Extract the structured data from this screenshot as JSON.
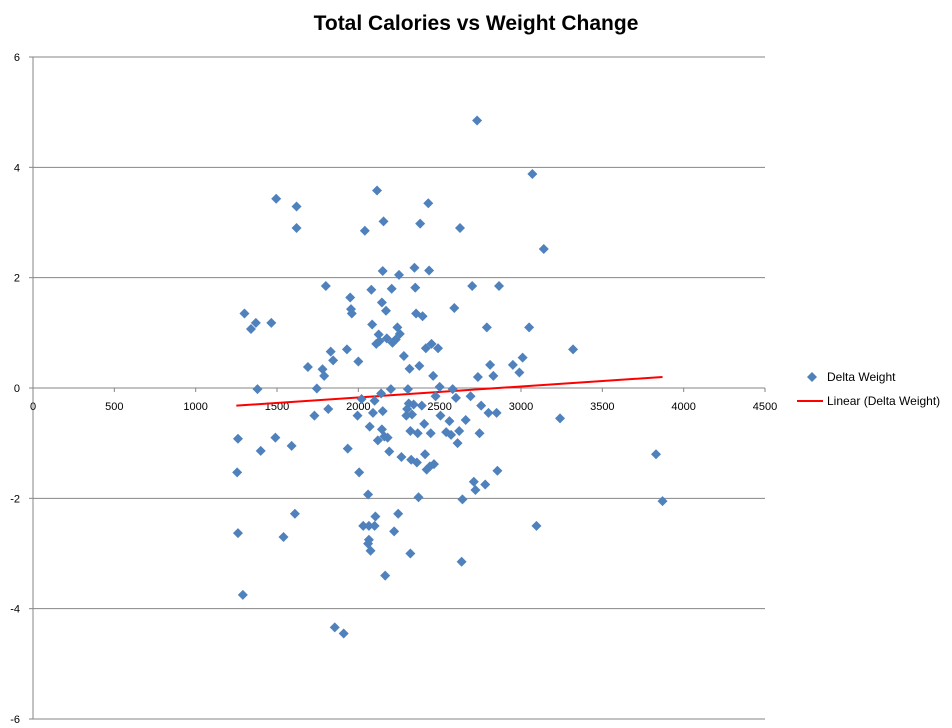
{
  "chart_data": {
    "type": "scatter",
    "title": "Total Calories vs Weight Change",
    "xlabel": "",
    "ylabel": "",
    "xlim": [
      0,
      4500
    ],
    "ylim": [
      -6,
      6
    ],
    "x_ticks": [
      0,
      500,
      1000,
      1500,
      2000,
      2500,
      3000,
      3500,
      4000,
      4500
    ],
    "y_ticks": [
      -6,
      -4,
      -2,
      0,
      2,
      4,
      6
    ],
    "grid": "horizontal",
    "legend_position": "right",
    "series": [
      {
        "name": "Delta Weight",
        "marker": "diamond",
        "color": "#4F81BD",
        "points": [
          [
            1260,
            -0.92
          ],
          [
            1255,
            -1.53
          ],
          [
            1260,
            -2.63
          ],
          [
            1290,
            -3.75
          ],
          [
            1300,
            1.35
          ],
          [
            1340,
            1.07
          ],
          [
            1370,
            1.18
          ],
          [
            1380,
            -0.02
          ],
          [
            1400,
            -1.14
          ],
          [
            1465,
            1.18
          ],
          [
            1490,
            -0.9
          ],
          [
            1495,
            3.43
          ],
          [
            1540,
            -2.7
          ],
          [
            1590,
            -1.05
          ],
          [
            1610,
            -2.28
          ],
          [
            1620,
            2.9
          ],
          [
            1620,
            3.29
          ],
          [
            1690,
            0.38
          ],
          [
            1730,
            -0.5
          ],
          [
            1745,
            -0.01
          ],
          [
            1780,
            0.34
          ],
          [
            1790,
            0.22
          ],
          [
            1800,
            1.85
          ],
          [
            1815,
            -0.38
          ],
          [
            1830,
            0.66
          ],
          [
            1845,
            0.5
          ],
          [
            1855,
            -4.34
          ],
          [
            1910,
            -4.45
          ],
          [
            1930,
            0.7
          ],
          [
            1935,
            -1.1
          ],
          [
            1950,
            1.64
          ],
          [
            1955,
            1.43
          ],
          [
            1960,
            1.35
          ],
          [
            1995,
            -0.5
          ],
          [
            2000,
            0.48
          ],
          [
            2005,
            -1.53
          ],
          [
            2020,
            -0.2
          ],
          [
            2030,
            -2.5
          ],
          [
            2040,
            2.85
          ],
          [
            2060,
            -1.93
          ],
          [
            2065,
            -2.5
          ],
          [
            2060,
            -2.82
          ],
          [
            2065,
            -2.75
          ],
          [
            2075,
            -2.95
          ],
          [
            2070,
            -0.7
          ],
          [
            2080,
            1.78
          ],
          [
            2085,
            1.15
          ],
          [
            2090,
            -0.45
          ],
          [
            2100,
            -0.23
          ],
          [
            2105,
            -2.33
          ],
          [
            2100,
            -2.5
          ],
          [
            2110,
            0.8
          ],
          [
            2115,
            3.58
          ],
          [
            2120,
            -0.95
          ],
          [
            2125,
            0.97
          ],
          [
            2130,
            0.85
          ],
          [
            2140,
            -0.1
          ],
          [
            2145,
            1.55
          ],
          [
            2150,
            2.12
          ],
          [
            2155,
            3.02
          ],
          [
            2145,
            -0.75
          ],
          [
            2150,
            -0.42
          ],
          [
            2160,
            -0.88
          ],
          [
            2165,
            -3.4
          ],
          [
            2170,
            1.4
          ],
          [
            2175,
            0.9
          ],
          [
            2180,
            -0.9
          ],
          [
            2190,
            -1.15
          ],
          [
            2200,
            -0.02
          ],
          [
            2205,
            1.8
          ],
          [
            2210,
            0.82
          ],
          [
            2220,
            -2.6
          ],
          [
            2230,
            0.88
          ],
          [
            2240,
            1.1
          ],
          [
            2245,
            -2.28
          ],
          [
            2250,
            2.05
          ],
          [
            2255,
            0.98
          ],
          [
            2265,
            -1.25
          ],
          [
            2280,
            0.58
          ],
          [
            2295,
            -0.5
          ],
          [
            2300,
            -0.38
          ],
          [
            2305,
            -0.02
          ],
          [
            2310,
            -0.28
          ],
          [
            2315,
            0.35
          ],
          [
            2320,
            -0.78
          ],
          [
            2325,
            -1.3
          ],
          [
            2320,
            -3.0
          ],
          [
            2330,
            -0.48
          ],
          [
            2340,
            -0.3
          ],
          [
            2345,
            2.18
          ],
          [
            2350,
            1.82
          ],
          [
            2355,
            1.35
          ],
          [
            2360,
            -1.35
          ],
          [
            2365,
            -0.82
          ],
          [
            2370,
            -1.98
          ],
          [
            2375,
            0.4
          ],
          [
            2380,
            2.98
          ],
          [
            2390,
            -0.32
          ],
          [
            2395,
            1.3
          ],
          [
            2405,
            -0.65
          ],
          [
            2410,
            -1.2
          ],
          [
            2415,
            0.72
          ],
          [
            2420,
            -1.48
          ],
          [
            2430,
            3.35
          ],
          [
            2435,
            2.13
          ],
          [
            2440,
            -1.42
          ],
          [
            2445,
            -0.82
          ],
          [
            2450,
            0.8
          ],
          [
            2460,
            0.22
          ],
          [
            2465,
            -1.38
          ],
          [
            2475,
            -0.15
          ],
          [
            2490,
            0.72
          ],
          [
            2500,
            0.02
          ],
          [
            2505,
            -0.5
          ],
          [
            2540,
            -0.8
          ],
          [
            2560,
            -0.6
          ],
          [
            2570,
            -0.85
          ],
          [
            2580,
            -0.02
          ],
          [
            2590,
            1.45
          ],
          [
            2600,
            -0.18
          ],
          [
            2610,
            -1.0
          ],
          [
            2620,
            -0.78
          ],
          [
            2625,
            2.9
          ],
          [
            2635,
            -3.15
          ],
          [
            2640,
            -2.02
          ],
          [
            2660,
            -0.58
          ],
          [
            2690,
            -0.15
          ],
          [
            2700,
            1.85
          ],
          [
            2710,
            -1.7
          ],
          [
            2720,
            -1.85
          ],
          [
            2730,
            4.85
          ],
          [
            2735,
            0.2
          ],
          [
            2745,
            -0.82
          ],
          [
            2755,
            -0.32
          ],
          [
            2780,
            -1.75
          ],
          [
            2790,
            1.1
          ],
          [
            2800,
            -0.45
          ],
          [
            2810,
            0.42
          ],
          [
            2830,
            0.22
          ],
          [
            2850,
            -0.45
          ],
          [
            2855,
            -1.5
          ],
          [
            2865,
            1.85
          ],
          [
            2950,
            0.42
          ],
          [
            2990,
            0.28
          ],
          [
            3010,
            0.55
          ],
          [
            3050,
            1.1
          ],
          [
            3070,
            3.88
          ],
          [
            3095,
            -2.5
          ],
          [
            3140,
            2.52
          ],
          [
            3240,
            -0.55
          ],
          [
            3320,
            0.7
          ],
          [
            3830,
            -1.2
          ],
          [
            3870,
            -2.05
          ]
        ]
      }
    ],
    "trendlines": [
      {
        "name": "Linear (Delta Weight)",
        "type": "linear",
        "color": "#FF0000",
        "x_range": [
          1250,
          3870
        ],
        "y_range": [
          -0.32,
          0.2
        ]
      }
    ]
  }
}
